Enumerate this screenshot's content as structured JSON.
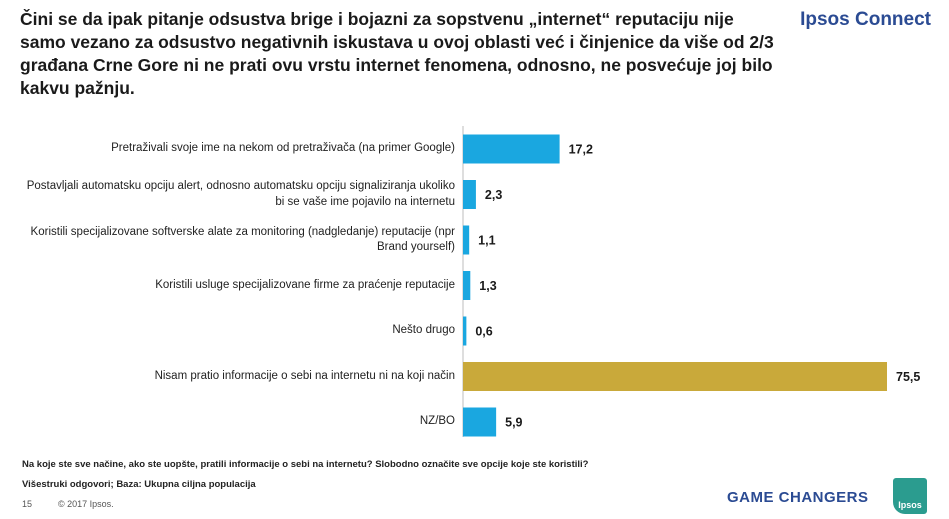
{
  "header": {
    "title": "Čini se da ipak pitanje odsustva brige i bojazni za sopstvenu „internet“ reputaciju nije samo vezano za odsustvo negativnih iskustava u ovoj oblasti već i činjenice da više od 2/3 građana Crne Gore ni ne prati ovu vrstu internet fenomena, odnosno, ne posvećuje joj bilo kakvu pažnju.",
    "brand": "Ipsos Connect"
  },
  "chart_data": {
    "type": "bar",
    "orientation": "horizontal",
    "categories": [
      "Pretraživali svoje ime na nekom od pretraživača (na primer Google)",
      "Postavljali automatsku opciju alert, odnosno automatsku opciju signaliziranja ukoliko bi se vaše ime pojavilo na internetu",
      "Koristili specijalizovane softverske alate za monitoring (nadgledanje) reputacije (npr Brand yourself)",
      "Koristili usluge specijalizovane firme za praćenje reputacije",
      "Nešto drugo",
      "Nisam pratio informacije o sebi na internetu ni  na koji način",
      "NZ/BO"
    ],
    "values": [
      17.2,
      2.3,
      1.1,
      1.3,
      0.6,
      75.5,
      5.9
    ],
    "value_labels": [
      "17,2",
      "2,3",
      "1,1",
      "1,3",
      "0,6",
      "75,5",
      "5,9"
    ],
    "bar_colors": [
      "#1aa7e0",
      "#1aa7e0",
      "#1aa7e0",
      "#1aa7e0",
      "#1aa7e0",
      "#c9a93a",
      "#1aa7e0"
    ],
    "xlim": [
      0,
      75.5
    ],
    "grid": false,
    "axis_line_color": "#bdbdbd"
  },
  "footer": {
    "question": "Na koje ste sve načine, ako ste uopšte, pratili informacije o sebi na internetu? Slobodno označite sve opcije koje ste koristili?",
    "base": "Višestruki odgovori; Baza: Ukupna ciljna populacija",
    "page_number": "15",
    "copyright": "© 2017 Ipsos.",
    "tagline": "GAME CHANGERS",
    "logo_text": "Ipsos"
  }
}
